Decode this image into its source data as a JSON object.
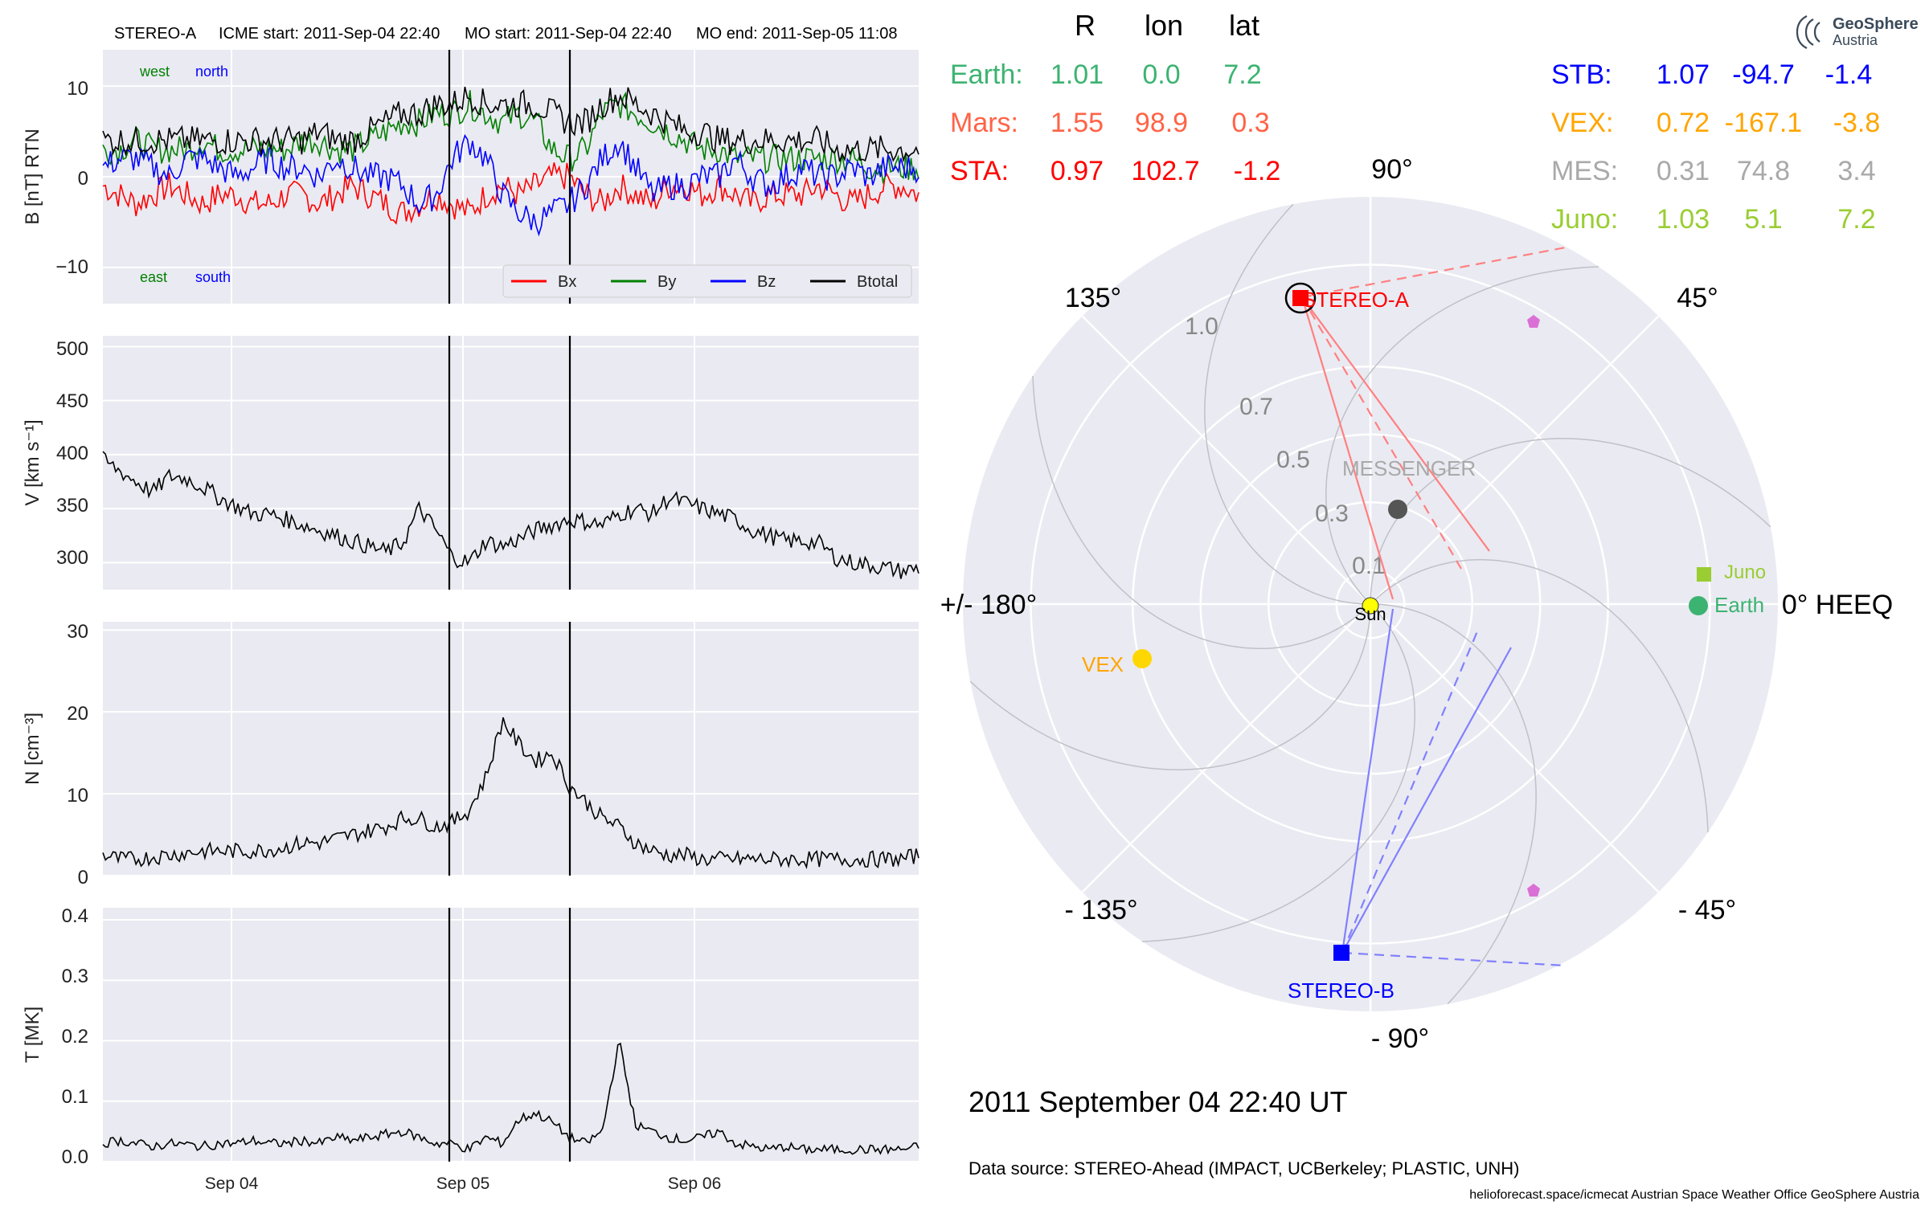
{
  "header": {
    "spacecraft": "STEREO-A",
    "icme_start": "ICME start: 2011-Sep-04 22:40",
    "mo_start": "MO start: 2011-Sep-04 22:40",
    "mo_end": "MO end: 2011-Sep-05 11:08"
  },
  "panels": {
    "b": {
      "ylabel": "B [nT] RTN",
      "yticks": [
        "10",
        "0",
        "−10"
      ],
      "corner_labels": {
        "west": "west",
        "north": "north",
        "east": "east",
        "south": "south"
      }
    },
    "v": {
      "ylabel": "V [km s⁻¹]",
      "yticks": [
        "500",
        "450",
        "400",
        "350",
        "300"
      ]
    },
    "n": {
      "ylabel": "N [cm⁻³]",
      "yticks": [
        "30",
        "20",
        "10",
        "0"
      ]
    },
    "t": {
      "ylabel": "T [MK]",
      "yticks": [
        "0.4",
        "0.3",
        "0.2",
        "0.1",
        "0.0"
      ]
    }
  },
  "x_axis": {
    "ticks": [
      "Sep 04",
      "Sep 05",
      "Sep 06"
    ]
  },
  "legend": [
    {
      "name": "Bx",
      "color": "#ff0000"
    },
    {
      "name": "By",
      "color": "#008000"
    },
    {
      "name": "Bz",
      "color": "#0000ff"
    },
    {
      "name": "Btotal",
      "color": "#000000"
    }
  ],
  "position_table": {
    "columns": [
      "R",
      "lon",
      "lat"
    ],
    "left_rows": [
      {
        "label": "Earth:",
        "r": "1.01",
        "lon": "0.0",
        "lat": "7.2",
        "color": "#3cb371"
      },
      {
        "label": "Mars:",
        "r": "1.55",
        "lon": "98.9",
        "lat": "0.3",
        "color": "#ff6347"
      },
      {
        "label": "STA:",
        "r": "0.97",
        "lon": "102.7",
        "lat": "-1.2",
        "color": "#ff0000"
      }
    ],
    "right_rows": [
      {
        "label": "STB:",
        "r": "1.07",
        "lon": "-94.7",
        "lat": "-1.4",
        "color": "#0000ff"
      },
      {
        "label": "VEX:",
        "r": "0.72",
        "lon": "-167.1",
        "lat": "-3.8",
        "color": "#ffa500"
      },
      {
        "label": "MES:",
        "r": "0.31",
        "lon": "74.8",
        "lat": "3.4",
        "color": "#a9a9a9"
      },
      {
        "label": "Juno:",
        "r": "1.03",
        "lon": "5.1",
        "lat": "7.2",
        "color": "#9acd32"
      }
    ]
  },
  "polar_plot": {
    "angle_labels": {
      "a90": "90°",
      "a45": "45°",
      "a0": "0° HEEQ",
      "am45": "- 45°",
      "am90": "- 90°",
      "am135": "- 135°",
      "a180": "+/- 180°",
      "a135": "135°"
    },
    "radial_labels": [
      "1.0",
      "0.7",
      "0.5",
      "0.3",
      "0.1"
    ],
    "objects": {
      "sta": "STEREO-A",
      "stb": "STEREO-B",
      "messenger": "MESSENGER",
      "juno": "Juno",
      "earth": "Earth",
      "vex": "VEX",
      "sun": "Sun"
    }
  },
  "date_text": "2011 September 04  22:40 UT",
  "data_source": "Data source: STEREO-Ahead (IMPACT, UCBerkeley; PLASTIC, UNH)",
  "footer": "helioforecast.space/icmecat   Austrian Space Weather Office   GeoSphere Austria",
  "logo": {
    "line1": "GeoSphere",
    "line2": "Austria"
  },
  "chart_data": [
    {
      "type": "line",
      "title": "",
      "ylabel": "B [nT] RTN",
      "ylim": [
        -14,
        14
      ],
      "x_range": [
        "2011-09-03 10:40",
        "2011-09-06 22:40"
      ],
      "event_lines": [
        "2011-09-04 22:40",
        "2011-09-05 11:08"
      ],
      "series": [
        {
          "name": "Bx",
          "color": "#ff0000",
          "values": [
            -1,
            -2,
            -3,
            -2,
            -1,
            -2,
            -3,
            -2,
            -2,
            -3,
            -3,
            -2,
            -2,
            -3,
            -2,
            -1,
            -2,
            -3,
            -4,
            -3,
            -2,
            -3,
            -4,
            -2,
            -1,
            -2,
            -1,
            0,
            0,
            -2,
            -3,
            -1,
            -2,
            -3,
            -1,
            -1,
            -2,
            -1,
            -2,
            -3,
            -2,
            -2,
            -2,
            -1,
            -2,
            -3,
            -2,
            -1,
            -1,
            -2
          ]
        },
        {
          "name": "By",
          "color": "#008000",
          "values": [
            3,
            3,
            4,
            3,
            3,
            3,
            4,
            3,
            3,
            3,
            3,
            3,
            4,
            4,
            3,
            3,
            4,
            5,
            6,
            6,
            7,
            7,
            8,
            7,
            6,
            7,
            6,
            3,
            2,
            3,
            7,
            8,
            7,
            6,
            5,
            4,
            3,
            3,
            2,
            2,
            2,
            2,
            2,
            2,
            2,
            2,
            1,
            1,
            1,
            1
          ]
        },
        {
          "name": "Bz",
          "color": "#0000ff",
          "values": [
            1,
            2,
            2,
            1,
            0,
            2,
            2,
            1,
            0,
            1,
            2,
            1,
            1,
            0,
            2,
            1,
            0,
            0,
            -1,
            -3,
            -2,
            2,
            4,
            2,
            -2,
            -4,
            -5,
            -4,
            -3,
            -1,
            2,
            4,
            1,
            -2,
            -1,
            -1,
            0,
            0,
            2,
            0,
            -1,
            0,
            1,
            0,
            0,
            1,
            0,
            1,
            1,
            1
          ]
        },
        {
          "name": "Btotal",
          "color": "#000000",
          "values": [
            4,
            4,
            4,
            4,
            4,
            4,
            4,
            4,
            4,
            4,
            4,
            4,
            4,
            5,
            4,
            4,
            5,
            6,
            7,
            7,
            8,
            8,
            9,
            8,
            8,
            8,
            8,
            7,
            6,
            6,
            8,
            9,
            8,
            7,
            6,
            5,
            5,
            4,
            4,
            4,
            4,
            4,
            4,
            4,
            3,
            3,
            3,
            3,
            3,
            3
          ]
        }
      ]
    },
    {
      "type": "line",
      "ylabel": "V [km s⁻¹]",
      "ylim": [
        275,
        510
      ],
      "x_range": [
        "2011-09-03 10:40",
        "2011-09-06 22:40"
      ],
      "series": [
        {
          "name": "",
          "color": "#000000",
          "values": [
            395,
            385,
            375,
            365,
            380,
            378,
            370,
            360,
            352,
            345,
            345,
            340,
            335,
            330,
            325,
            320,
            315,
            310,
            318,
            350,
            330,
            305,
            300,
            320,
            315,
            322,
            330,
            335,
            340,
            338,
            335,
            345,
            350,
            345,
            360,
            355,
            350,
            345,
            340,
            330,
            325,
            320,
            320,
            318,
            305,
            300,
            298,
            295,
            292,
            295
          ]
        }
      ]
    },
    {
      "type": "line",
      "ylabel": "N [cm⁻³]",
      "ylim": [
        0,
        31
      ],
      "x_range": [
        "2011-09-03 10:40",
        "2011-09-06 22:40"
      ],
      "series": [
        {
          "name": "",
          "color": "#000000",
          "values": [
            2.5,
            2,
            2,
            2.3,
            2.5,
            2.8,
            3,
            3,
            3,
            3,
            3.2,
            3.5,
            4,
            4,
            4.5,
            5,
            5.5,
            6,
            7,
            7,
            6,
            6.5,
            8,
            12,
            19,
            16,
            14,
            15,
            11,
            9,
            7,
            6,
            4,
            3,
            2.5,
            2.5,
            2,
            2,
            2,
            2,
            2,
            2,
            2,
            2,
            2,
            2,
            2,
            2,
            2,
            2.5
          ]
        }
      ]
    },
    {
      "type": "line",
      "ylabel": "T [MK]",
      "ylim": [
        0,
        0.42
      ],
      "x_range": [
        "2011-09-03 10:40",
        "2011-09-06 22:40"
      ],
      "series": [
        {
          "name": "",
          "color": "#000000",
          "values": [
            0.03,
            0.035,
            0.03,
            0.025,
            0.03,
            0.028,
            0.025,
            0.03,
            0.03,
            0.035,
            0.03,
            0.03,
            0.035,
            0.03,
            0.04,
            0.035,
            0.04,
            0.045,
            0.05,
            0.04,
            0.03,
            0.03,
            0.02,
            0.04,
            0.03,
            0.07,
            0.08,
            0.065,
            0.04,
            0.03,
            0.05,
            0.2,
            0.06,
            0.05,
            0.04,
            0.035,
            0.04,
            0.05,
            0.03,
            0.025,
            0.02,
            0.025,
            0.02,
            0.02,
            0.02,
            0.02,
            0.02,
            0.02,
            0.02,
            0.025
          ]
        }
      ]
    },
    {
      "type": "scatter",
      "title": "",
      "coordinate_system": "polar, HEEQ longitude (deg) vs radial distance (AU)",
      "rlim": [
        0,
        1.2
      ],
      "points": [
        {
          "name": "STEREO-A",
          "r": 0.97,
          "lon": 102.7,
          "color": "#ff0000",
          "marker": "square"
        },
        {
          "name": "STEREO-B",
          "r": 1.07,
          "lon": -94.7,
          "color": "#0000ff",
          "marker": "square"
        },
        {
          "name": "Earth",
          "r": 1.01,
          "lon": 0.0,
          "color": "#3cb371",
          "marker": "circle"
        },
        {
          "name": "Juno",
          "r": 1.03,
          "lon": 5.1,
          "color": "#9acd32",
          "marker": "square"
        },
        {
          "name": "MESSENGER",
          "r": 0.31,
          "lon": 74.8,
          "color": "#555555",
          "marker": "circle"
        },
        {
          "name": "VEX",
          "r": 0.72,
          "lon": -167.1,
          "color": "#ffd700",
          "marker": "circle"
        },
        {
          "name": "Sun",
          "r": 0.0,
          "lon": 0.0,
          "color": "#ffff00",
          "marker": "circle"
        }
      ]
    }
  ]
}
